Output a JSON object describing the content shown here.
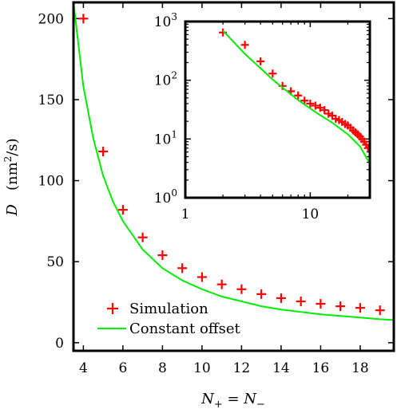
{
  "chart_data": [
    {
      "type": "scatter",
      "xlabel": "N+ = N−",
      "ylabel": "D   (nm²/s)",
      "xlim": [
        3.5,
        19.7
      ],
      "ylim": [
        -5,
        210
      ],
      "xticks": [
        4,
        6,
        8,
        10,
        12,
        14,
        16,
        18
      ],
      "yticks": [
        0,
        50,
        100,
        150,
        200
      ],
      "grid": false,
      "legend_position": "bottom-left",
      "series": [
        {
          "name": "Simulation",
          "marker": "plus",
          "color": "#ff0000",
          "x": [
            4,
            5,
            6,
            7,
            8,
            9,
            10,
            11,
            12,
            13,
            14,
            15,
            16,
            17,
            18,
            19
          ],
          "y": [
            200,
            118,
            82,
            65,
            54,
            46,
            40.5,
            36,
            33,
            30,
            27.5,
            25.5,
            24,
            22.5,
            21.5,
            20
          ]
        },
        {
          "name": "Constant offset",
          "line": "solid",
          "color": "#00ee00",
          "x": [
            3.5,
            4,
            4.5,
            5,
            5.5,
            6,
            7,
            8,
            9,
            10,
            11,
            12,
            13,
            14,
            15,
            16,
            17,
            18,
            19,
            19.7
          ],
          "y": [
            210,
            158,
            126,
            103,
            87,
            75,
            57.5,
            46,
            38.5,
            33,
            28.5,
            25.5,
            22.5,
            20.5,
            19,
            17.5,
            16.5,
            15.5,
            14.5,
            14
          ]
        }
      ]
    },
    {
      "type": "scatter",
      "inset": true,
      "xscale": "log",
      "yscale": "log",
      "xlim": [
        1,
        30
      ],
      "ylim": [
        1,
        1000
      ],
      "xticks": [
        {
          "value": 1,
          "label": "1"
        },
        {
          "value": 10,
          "label": "10"
        }
      ],
      "yticks": [
        {
          "value": 1,
          "base": "10",
          "exp": "0"
        },
        {
          "value": 10,
          "base": "10",
          "exp": "1"
        },
        {
          "value": 100,
          "base": "10",
          "exp": "2"
        },
        {
          "value": 1000,
          "base": "10",
          "exp": "3"
        }
      ],
      "series": [
        {
          "name": "Simulation",
          "marker": "plus",
          "color": "#ff0000",
          "x": [
            2,
            3,
            4,
            5,
            6,
            7,
            8,
            9,
            10,
            11,
            12,
            13,
            14,
            15,
            16,
            17,
            18,
            19,
            20,
            21,
            22,
            23,
            24,
            25,
            26,
            27,
            28,
            29
          ],
          "y": [
            650,
            400,
            210,
            130,
            80,
            65,
            55,
            45,
            40,
            37,
            34,
            31,
            27,
            25,
            22,
            21,
            19.5,
            18,
            17,
            15.5,
            14,
            13,
            12,
            11,
            10,
            9,
            8,
            7
          ]
        },
        {
          "name": "Constant offset",
          "line": "solid",
          "color": "#00ee00",
          "x": [
            2,
            3,
            4,
            5,
            6,
            8,
            10,
            12,
            15,
            20,
            25,
            30
          ],
          "y": [
            700,
            280,
            160,
            103,
            75,
            46,
            33,
            25.5,
            19,
            12,
            7.5,
            3.8
          ]
        }
      ]
    }
  ]
}
